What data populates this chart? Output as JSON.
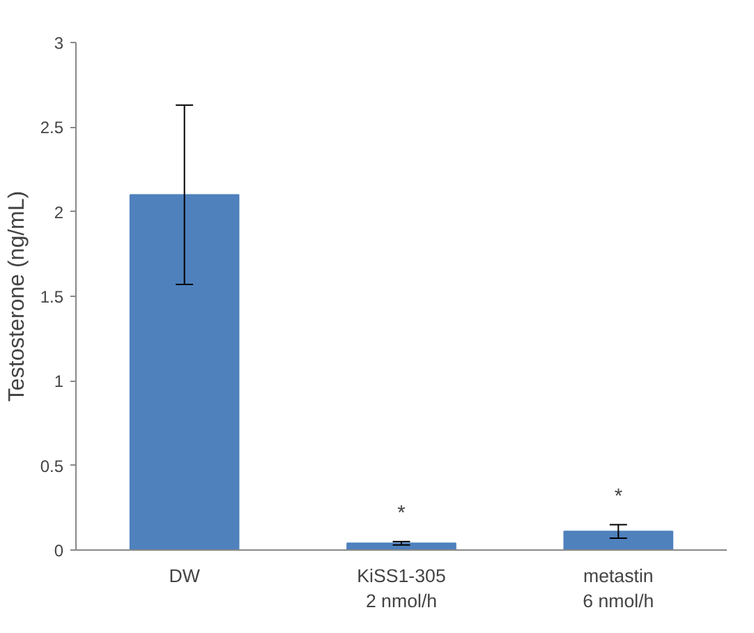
{
  "chart_data": {
    "type": "bar",
    "ylabel": "Testosterone (ng/mL)",
    "categories": [
      "DW",
      "KiSS1-305\n2 nmol/h",
      "metastin\n6 nmol/h"
    ],
    "values": [
      2.1,
      0.04,
      0.11
    ],
    "errors": [
      0.53,
      0.01,
      0.04
    ],
    "color": "#4f81bd",
    "ylim": [
      0,
      3
    ],
    "yticks": [
      0,
      0.5,
      1,
      1.5,
      2,
      2.5,
      3
    ],
    "grid": false,
    "annotations": [
      "*",
      "*"
    ]
  }
}
